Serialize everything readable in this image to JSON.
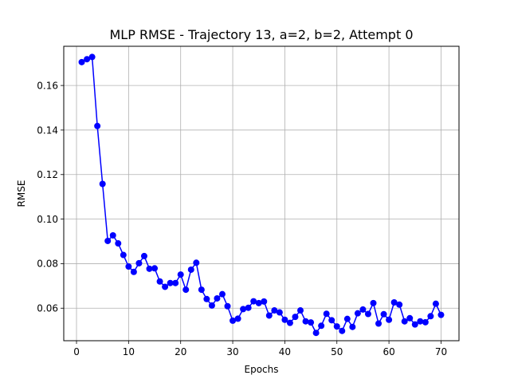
{
  "chart_data": {
    "type": "line",
    "title": "MLP RMSE - Trajectory 13, a=2, b=2, Attempt 0",
    "xlabel": "Epochs",
    "ylabel": "RMSE",
    "xlim": [
      -2.45,
      73.45
    ],
    "ylim": [
      0.0454,
      0.1776
    ],
    "x_ticks": [
      0,
      10,
      20,
      30,
      40,
      50,
      60,
      70
    ],
    "y_ticks": [
      0.06,
      0.08,
      0.1,
      0.12,
      0.14,
      0.16
    ],
    "x_tick_labels": [
      "0",
      "10",
      "20",
      "30",
      "40",
      "50",
      "60",
      "70"
    ],
    "y_tick_labels": [
      "0.06",
      "0.08",
      "0.10",
      "0.12",
      "0.14",
      "0.16"
    ],
    "grid": true,
    "legend": "none",
    "series": [
      {
        "color": "#0000ff",
        "marker": "circle",
        "x": [
          1,
          2,
          3,
          4,
          5,
          6,
          7,
          8,
          9,
          10,
          11,
          12,
          13,
          14,
          15,
          16,
          17,
          18,
          19,
          20,
          21,
          22,
          23,
          24,
          25,
          26,
          27,
          28,
          29,
          30,
          31,
          32,
          33,
          34,
          35,
          36,
          37,
          38,
          39,
          40,
          41,
          42,
          43,
          44,
          45,
          46,
          47,
          48,
          49,
          50,
          51,
          52,
          53,
          54,
          55,
          56,
          57,
          58,
          59,
          60,
          61,
          62,
          63,
          64,
          65,
          66,
          67,
          68,
          69,
          70
        ],
        "values": [
          0.1705,
          0.1718,
          0.1728,
          0.1418,
          0.1158,
          0.0902,
          0.0927,
          0.0891,
          0.0839,
          0.0787,
          0.0763,
          0.0802,
          0.0834,
          0.0777,
          0.0779,
          0.072,
          0.0696,
          0.0713,
          0.0713,
          0.0751,
          0.0683,
          0.0773,
          0.0804,
          0.0683,
          0.0641,
          0.0612,
          0.0644,
          0.0663,
          0.0609,
          0.0544,
          0.0553,
          0.0596,
          0.0602,
          0.0631,
          0.0623,
          0.063,
          0.0567,
          0.059,
          0.0581,
          0.0548,
          0.0534,
          0.0561,
          0.059,
          0.0541,
          0.0536,
          0.0489,
          0.0521,
          0.0575,
          0.0546,
          0.0518,
          0.0498,
          0.0552,
          0.0516,
          0.0577,
          0.0594,
          0.0574,
          0.0623,
          0.0531,
          0.0573,
          0.0548,
          0.0626,
          0.0616,
          0.0541,
          0.0555,
          0.0527,
          0.0541,
          0.0537,
          0.0564,
          0.062,
          0.057
        ]
      }
    ]
  }
}
